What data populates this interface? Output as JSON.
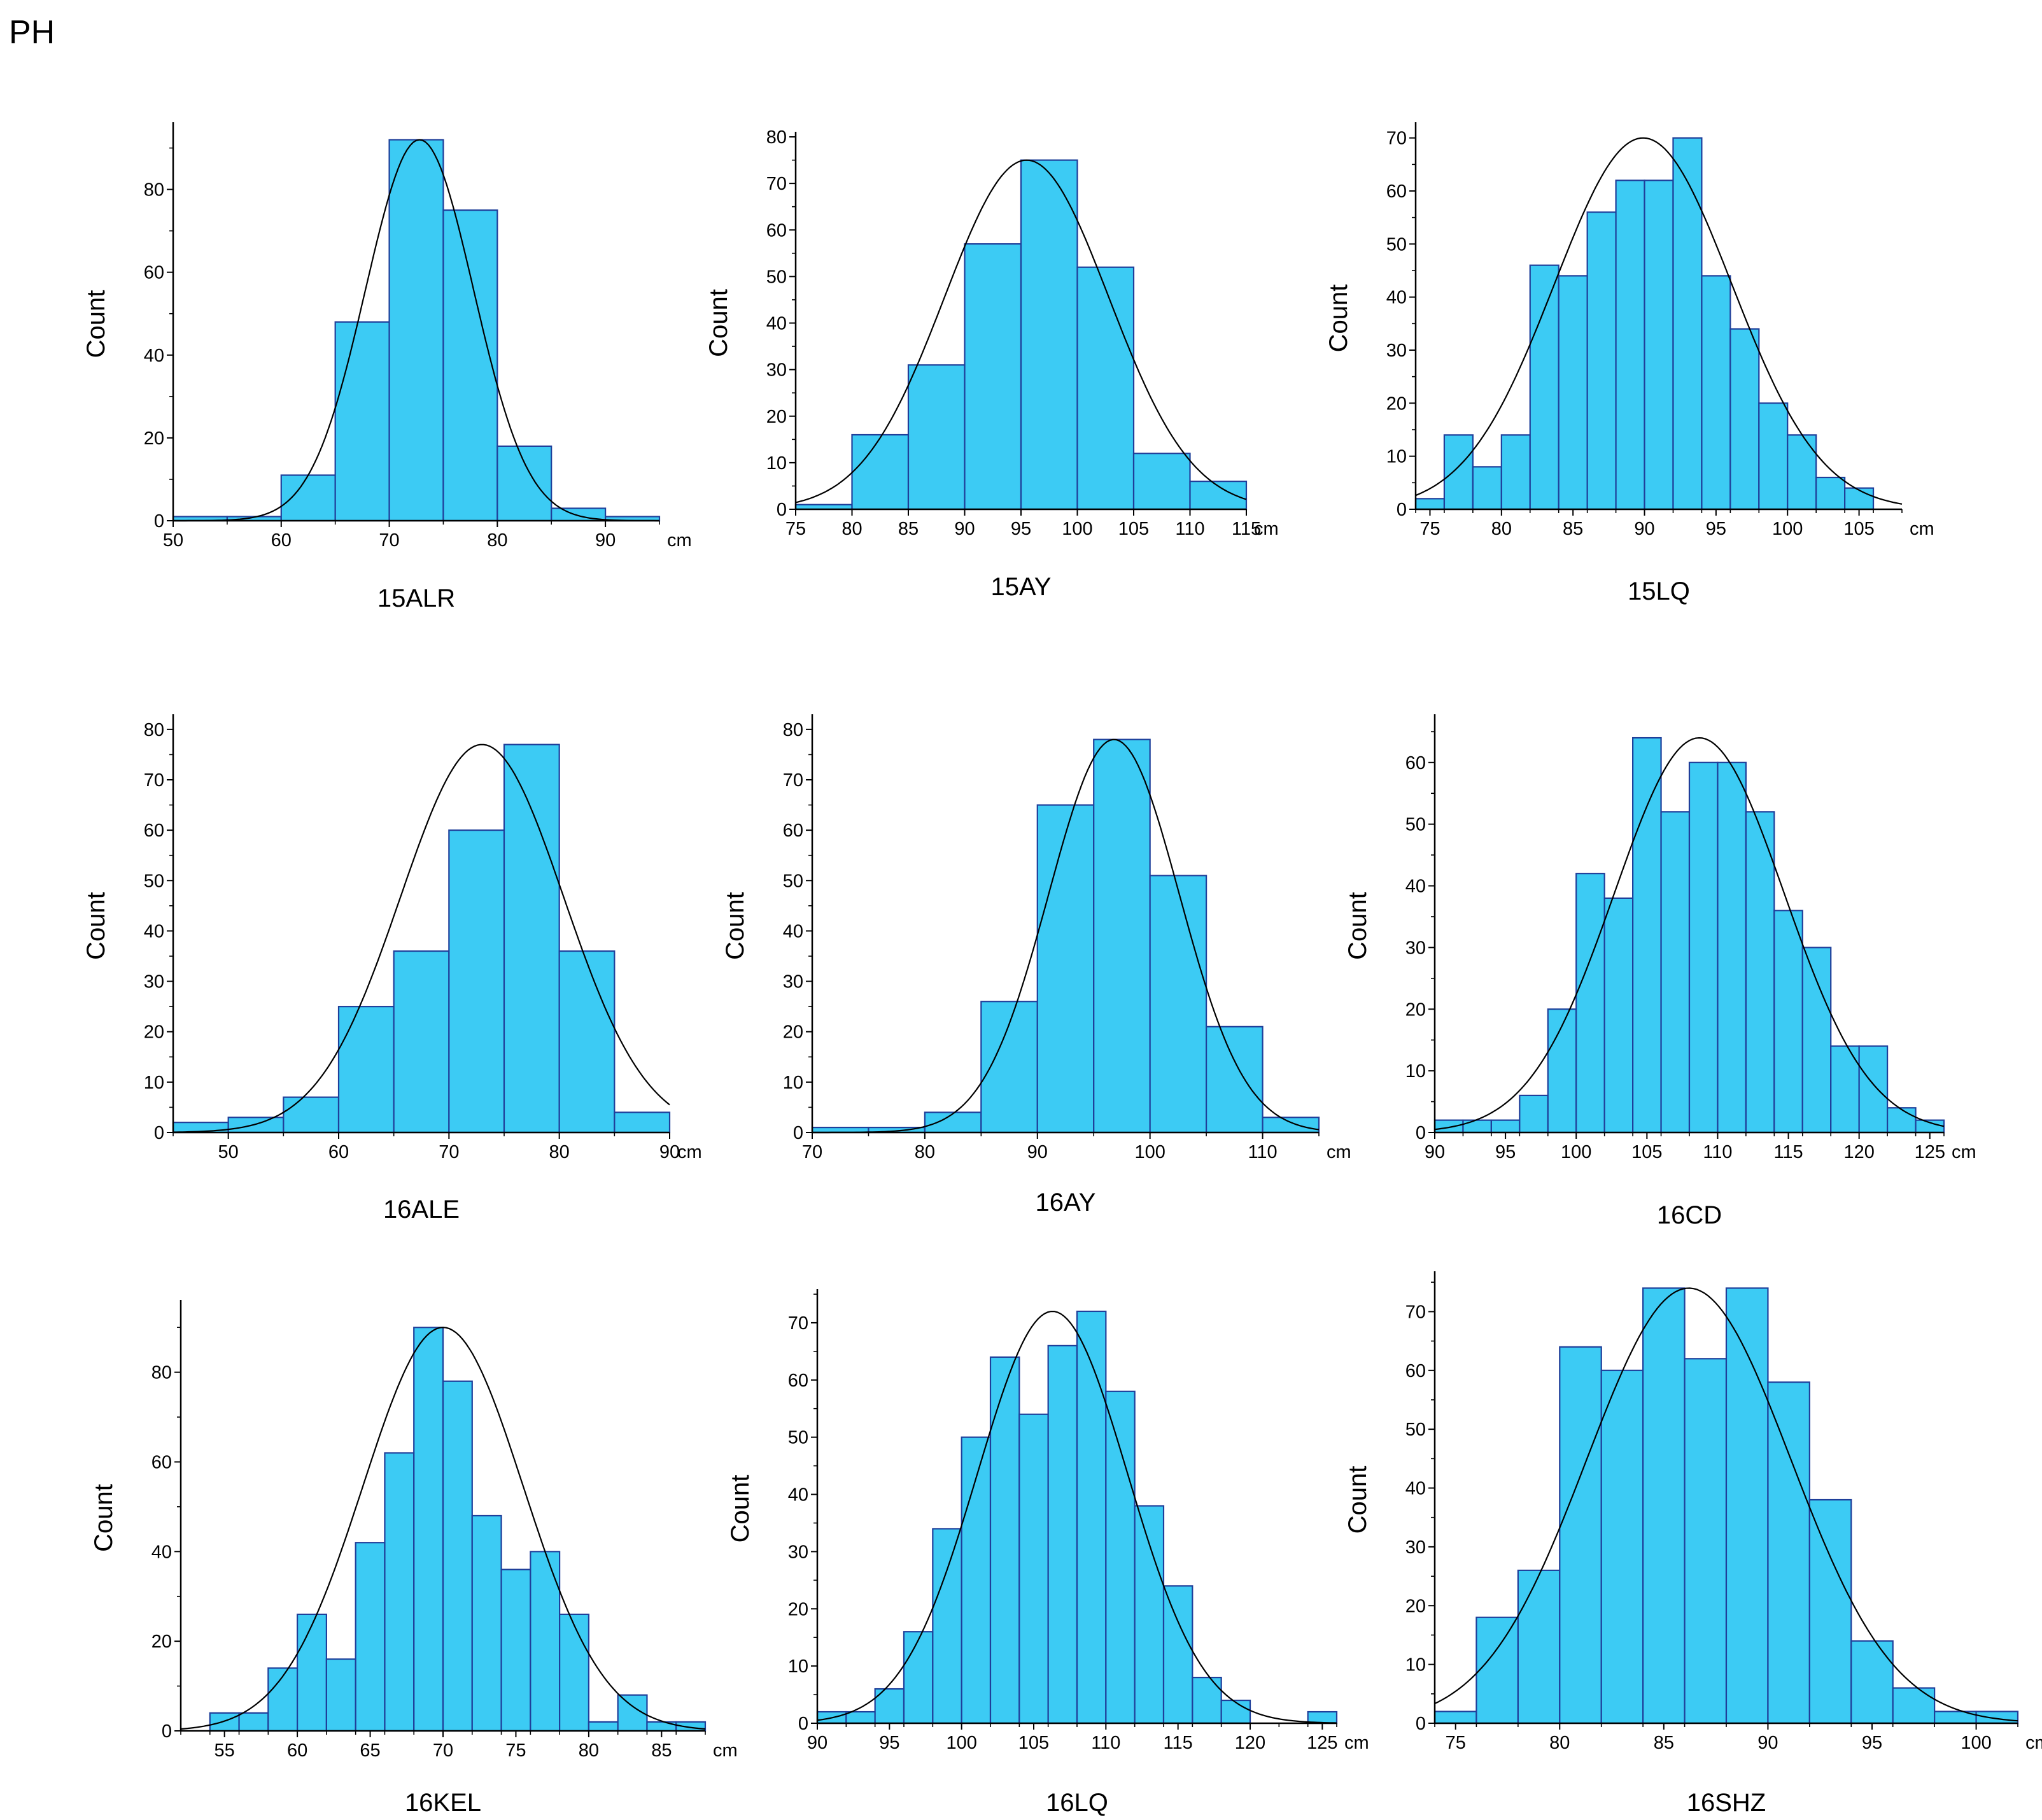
{
  "figure_label": "PH",
  "colors": {
    "bar_fill": "#3ccbf4",
    "bar_edge": "#1f3f9a",
    "curve": "#000000"
  },
  "chart_data": [
    {
      "type": "bar",
      "title": "15ALR",
      "ylabel": "Count",
      "unit": "cm",
      "bin_width": 5,
      "xlim": [
        50,
        95
      ],
      "ylim": [
        0,
        95
      ],
      "x_ticks": [
        50,
        60,
        70,
        80,
        90
      ],
      "y_ticks": [
        0,
        20,
        40,
        60,
        80
      ],
      "bins": [
        [
          50,
          1
        ],
        [
          55,
          1
        ],
        [
          60,
          11
        ],
        [
          65,
          48
        ],
        [
          70,
          92
        ],
        [
          75,
          75
        ],
        [
          80,
          18
        ],
        [
          85,
          3
        ],
        [
          90,
          1
        ]
      ],
      "fit_curve": {
        "mean": 72.8,
        "sd": 5.0,
        "peak": 92
      }
    },
    {
      "type": "bar",
      "title": "15AY",
      "ylabel": "Count",
      "unit": "cm",
      "bin_width": 5,
      "xlim": [
        75,
        115
      ],
      "ylim": [
        0,
        80
      ],
      "x_ticks": [
        75,
        80,
        85,
        90,
        95,
        100,
        105,
        110,
        115
      ],
      "y_ticks": [
        0,
        10,
        20,
        30,
        40,
        50,
        60,
        70,
        80
      ],
      "bins": [
        [
          75,
          1
        ],
        [
          80,
          16
        ],
        [
          85,
          31
        ],
        [
          90,
          57
        ],
        [
          95,
          75
        ],
        [
          100,
          52
        ],
        [
          105,
          12
        ],
        [
          110,
          6
        ]
      ],
      "fit_curve": {
        "mean": 95.5,
        "sd": 7.3,
        "peak": 75
      }
    },
    {
      "type": "bar",
      "title": "15LQ",
      "ylabel": "Count",
      "unit": "cm",
      "bin_width": 2,
      "xlim": [
        74,
        108
      ],
      "ylim": [
        0,
        72
      ],
      "x_ticks": [
        75,
        80,
        85,
        90,
        95,
        100,
        105
      ],
      "y_ticks": [
        0,
        10,
        20,
        30,
        40,
        50,
        60,
        70
      ],
      "bins": [
        [
          74,
          2
        ],
        [
          76,
          14
        ],
        [
          78,
          8
        ],
        [
          80,
          14
        ],
        [
          82,
          46
        ],
        [
          84,
          44
        ],
        [
          86,
          56
        ],
        [
          88,
          62
        ],
        [
          90,
          62
        ],
        [
          92,
          70
        ],
        [
          94,
          44
        ],
        [
          96,
          34
        ],
        [
          98,
          20
        ],
        [
          100,
          14
        ],
        [
          102,
          6
        ],
        [
          104,
          4
        ]
      ],
      "fit_curve": {
        "mean": 89.9,
        "sd": 6.2,
        "peak": 70
      }
    },
    {
      "type": "bar",
      "title": "16ALE",
      "ylabel": "Count",
      "unit": "cm",
      "bin_width": 5,
      "xlim": [
        45,
        90
      ],
      "ylim": [
        0,
        82
      ],
      "x_ticks": [
        50,
        60,
        70,
        80,
        90
      ],
      "y_ticks": [
        0,
        10,
        20,
        30,
        40,
        50,
        60,
        70,
        80
      ],
      "bins": [
        [
          45,
          2
        ],
        [
          50,
          3
        ],
        [
          55,
          7
        ],
        [
          60,
          25
        ],
        [
          65,
          36
        ],
        [
          70,
          60
        ],
        [
          75,
          77
        ],
        [
          80,
          36
        ],
        [
          85,
          4
        ]
      ],
      "fit_curve": {
        "mean": 73.0,
        "sd": 7.4,
        "peak": 77
      }
    },
    {
      "type": "bar",
      "title": "16AY",
      "ylabel": "Count",
      "unit": "cm",
      "bin_width": 5,
      "xlim": [
        70,
        115
      ],
      "ylim": [
        0,
        82
      ],
      "x_ticks": [
        70,
        80,
        90,
        100,
        110
      ],
      "y_ticks": [
        0,
        10,
        20,
        30,
        40,
        50,
        60,
        70,
        80
      ],
      "bins": [
        [
          70,
          1
        ],
        [
          75,
          1
        ],
        [
          80,
          4
        ],
        [
          85,
          26
        ],
        [
          90,
          65
        ],
        [
          95,
          78
        ],
        [
          100,
          51
        ],
        [
          105,
          21
        ],
        [
          110,
          3
        ]
      ],
      "fit_curve": {
        "mean": 96.8,
        "sd": 5.8,
        "peak": 78
      }
    },
    {
      "type": "bar",
      "title": "16CD",
      "ylabel": "Count",
      "unit": "cm",
      "bin_width": 2,
      "xlim": [
        90,
        126
      ],
      "ylim": [
        0,
        67
      ],
      "x_ticks": [
        90,
        95,
        100,
        105,
        110,
        115,
        120,
        125
      ],
      "y_ticks": [
        0,
        10,
        20,
        30,
        40,
        50,
        60
      ],
      "bins": [
        [
          90,
          2
        ],
        [
          92,
          2
        ],
        [
          94,
          2
        ],
        [
          96,
          6
        ],
        [
          98,
          20
        ],
        [
          100,
          42
        ],
        [
          102,
          38
        ],
        [
          104,
          64
        ],
        [
          106,
          52
        ],
        [
          108,
          60
        ],
        [
          110,
          60
        ],
        [
          112,
          52
        ],
        [
          114,
          36
        ],
        [
          116,
          30
        ],
        [
          118,
          14
        ],
        [
          120,
          14
        ],
        [
          122,
          4
        ],
        [
          124,
          2
        ]
      ],
      "fit_curve": {
        "mean": 108.7,
        "sd": 6.0,
        "peak": 64
      }
    },
    {
      "type": "bar",
      "title": "16KEL",
      "ylabel": "Count",
      "unit": "cm",
      "bin_width": 2,
      "xlim": [
        52,
        88
      ],
      "ylim": [
        0,
        95
      ],
      "x_ticks": [
        55,
        60,
        65,
        70,
        75,
        80,
        85
      ],
      "y_ticks": [
        0,
        20,
        40,
        60,
        80
      ],
      "bins": [
        [
          54,
          4
        ],
        [
          56,
          4
        ],
        [
          58,
          14
        ],
        [
          60,
          26
        ],
        [
          62,
          16
        ],
        [
          64,
          42
        ],
        [
          66,
          62
        ],
        [
          68,
          90
        ],
        [
          70,
          78
        ],
        [
          72,
          48
        ],
        [
          74,
          36
        ],
        [
          76,
          40
        ],
        [
          78,
          26
        ],
        [
          80,
          2
        ],
        [
          82,
          8
        ],
        [
          84,
          2
        ],
        [
          86,
          2
        ]
      ],
      "fit_curve": {
        "mean": 70.0,
        "sd": 5.5,
        "peak": 90
      }
    },
    {
      "type": "bar",
      "title": "16LQ",
      "ylabel": "Count",
      "unit": "cm",
      "bin_width": 2,
      "xlim": [
        90,
        126
      ],
      "ylim": [
        0,
        75
      ],
      "x_ticks": [
        90,
        95,
        100,
        105,
        110,
        115,
        120,
        125
      ],
      "y_ticks": [
        0,
        10,
        20,
        30,
        40,
        50,
        60,
        70
      ],
      "bins": [
        [
          90,
          2
        ],
        [
          92,
          2
        ],
        [
          94,
          6
        ],
        [
          96,
          16
        ],
        [
          98,
          34
        ],
        [
          100,
          50
        ],
        [
          102,
          64
        ],
        [
          104,
          54
        ],
        [
          106,
          66
        ],
        [
          108,
          72
        ],
        [
          110,
          58
        ],
        [
          112,
          38
        ],
        [
          114,
          24
        ],
        [
          116,
          8
        ],
        [
          118,
          4
        ],
        [
          124,
          2
        ]
      ],
      "fit_curve": {
        "mean": 106.3,
        "sd": 5.2,
        "peak": 72
      }
    },
    {
      "type": "bar",
      "title": "16SHZ",
      "ylabel": "Count",
      "unit": "cm",
      "bin_width": 2,
      "xlim": [
        74,
        102
      ],
      "ylim": [
        0,
        76
      ],
      "x_ticks": [
        75,
        80,
        85,
        90,
        95,
        100
      ],
      "y_ticks": [
        0,
        10,
        20,
        30,
        40,
        50,
        60,
        70
      ],
      "bins": [
        [
          74,
          2
        ],
        [
          76,
          18
        ],
        [
          78,
          26
        ],
        [
          80,
          64
        ],
        [
          82,
          60
        ],
        [
          84,
          74
        ],
        [
          86,
          62
        ],
        [
          88,
          74
        ],
        [
          90,
          58
        ],
        [
          92,
          38
        ],
        [
          94,
          14
        ],
        [
          96,
          6
        ],
        [
          98,
          2
        ],
        [
          100,
          2
        ]
      ],
      "fit_curve": {
        "mean": 86.2,
        "sd": 4.9,
        "peak": 74
      }
    }
  ]
}
